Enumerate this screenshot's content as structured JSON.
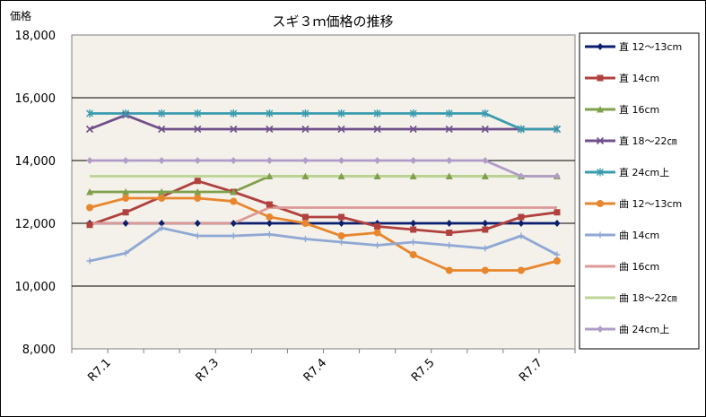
{
  "chart_data": {
    "type": "line",
    "title": "スギ３ｍ価格の推移",
    "unit_label": "価格",
    "ylim": [
      8000,
      18000
    ],
    "y_ticks": [
      "8,000",
      "10,000",
      "12,000",
      "14,000",
      "16,000",
      "18,000"
    ],
    "y_tick_values": [
      8000,
      10000,
      12000,
      14000,
      16000,
      18000
    ],
    "x_labels": [
      "R7.1",
      "R7.3",
      "R7.4",
      "R7.5",
      "R7.7"
    ],
    "x_label_index": [
      0.5,
      3.5,
      6.5,
      9.5,
      12.5
    ],
    "grid": "horizontal",
    "legend_position": "right",
    "series": [
      {
        "name": "直  12〜13cm",
        "color": "#0a1f6e",
        "marker": "diamond",
        "values": [
          12000,
          12000,
          12000,
          12000,
          12000,
          12000,
          12000,
          12000,
          12000,
          12000,
          12000,
          12000,
          12000,
          12000
        ]
      },
      {
        "name": "直  14cm",
        "color": "#b0413e",
        "marker": "square",
        "values": [
          11950,
          12350,
          12850,
          13350,
          13000,
          12600,
          12200,
          12200,
          11900,
          11800,
          11700,
          11800,
          12200,
          12350
        ]
      },
      {
        "name": "直  16cm",
        "color": "#7ea04a",
        "marker": "triangle",
        "values": [
          13000,
          13000,
          13000,
          13000,
          13000,
          13500,
          13500,
          13500,
          13500,
          13500,
          13500,
          13500,
          13500,
          13500
        ]
      },
      {
        "name": "直  18〜22㎝",
        "color": "#70508a",
        "marker": "x",
        "values": [
          15000,
          15450,
          15000,
          15000,
          15000,
          15000,
          15000,
          15000,
          15000,
          15000,
          15000,
          15000,
          15000,
          15000
        ]
      },
      {
        "name": "直  24cm上",
        "color": "#3a9bae",
        "marker": "star",
        "values": [
          15500,
          15500,
          15500,
          15500,
          15500,
          15500,
          15500,
          15500,
          15500,
          15500,
          15500,
          15500,
          15000,
          15000
        ]
      },
      {
        "name": "曲  12〜13cm",
        "color": "#e8862e",
        "marker": "circle",
        "values": [
          12500,
          12800,
          12800,
          12800,
          12700,
          12200,
          12000,
          11600,
          11700,
          11000,
          10500,
          10500,
          10500,
          10800
        ]
      },
      {
        "name": "曲  14cm",
        "color": "#8fa8d4",
        "marker": "plus",
        "values": [
          10800,
          11050,
          11850,
          11600,
          11600,
          11650,
          11500,
          11400,
          11300,
          11400,
          11300,
          11200,
          11600,
          11000
        ]
      },
      {
        "name": "曲  16cm",
        "color": "#dc9a96",
        "marker": "none",
        "values": [
          12000,
          12000,
          12000,
          12000,
          12000,
          12500,
          12500,
          12500,
          12500,
          12500,
          12500,
          12500,
          12500,
          12500
        ]
      },
      {
        "name": "曲  18〜22㎝",
        "color": "#bcd495",
        "marker": "none",
        "values": [
          13500,
          13500,
          13500,
          13500,
          13500,
          13500,
          13500,
          13500,
          13500,
          13500,
          13500,
          13500,
          13500,
          13500
        ]
      },
      {
        "name": "曲  24cm上",
        "color": "#b09cc8",
        "marker": "diamond",
        "values": [
          14000,
          14000,
          14000,
          14000,
          14000,
          14000,
          14000,
          14000,
          14000,
          14000,
          14000,
          14000,
          13500,
          13500
        ]
      }
    ]
  }
}
